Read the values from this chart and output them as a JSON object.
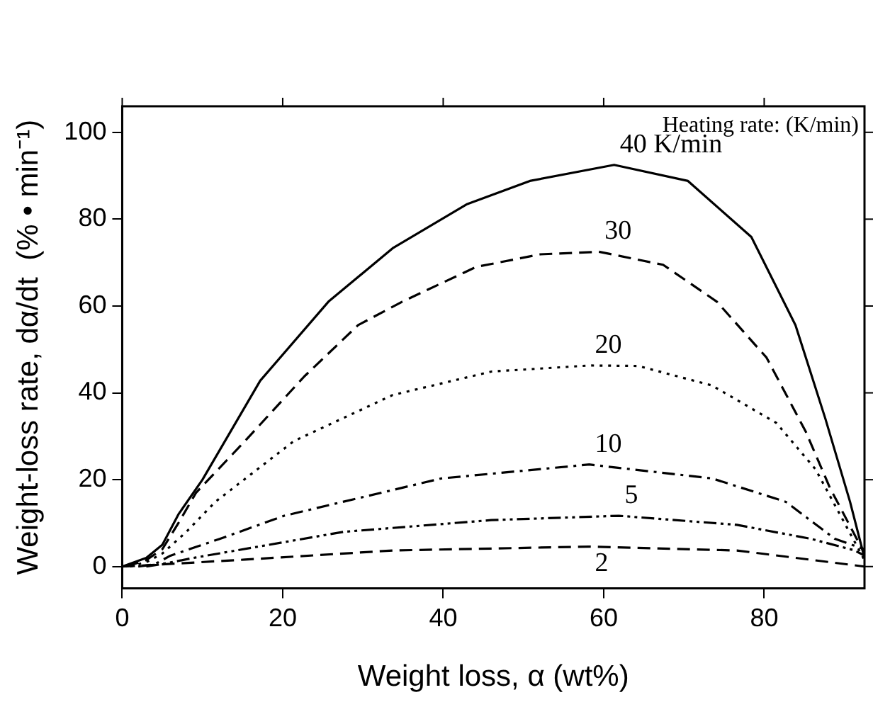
{
  "chart_data": {
    "type": "line",
    "xlabel": "Weight loss, α (wt%)",
    "ylabel": "Weight-loss rate, dα/dt  (% • min⁻¹)",
    "legend_title": "Heating rate: (K/min)",
    "xlim": [
      0,
      92.5
    ],
    "ylim": [
      -5,
      106
    ],
    "xticks": [
      0,
      20,
      40,
      60,
      80
    ],
    "yticks": [
      0,
      20,
      40,
      60,
      80,
      100
    ],
    "grid": false,
    "legend": "top right",
    "marker": "none",
    "series": [
      {
        "name": "40 K/min",
        "color": "#000000",
        "line_style": "solid",
        "x": [
          0,
          3,
          5,
          7,
          10,
          17.2,
          25.7,
          33.7,
          42.9,
          50.8,
          61.3,
          70.5,
          78.4,
          83.9,
          87.6,
          90.7,
          92.5
        ],
        "values": [
          0,
          2,
          5,
          12,
          20,
          42.8,
          61,
          73.3,
          83.4,
          88.8,
          92.5,
          88.8,
          75.9,
          55.6,
          34.2,
          14.9,
          2
        ]
      },
      {
        "name": "30",
        "color": "#000000",
        "line_style": "dashed",
        "x": [
          0.5,
          3,
          5,
          7,
          9.2,
          15.3,
          22.7,
          29.4,
          34.9,
          44.1,
          52.1,
          59.4,
          67.4,
          74.1,
          80.3,
          85.2,
          88.2,
          92.5
        ],
        "values": [
          0,
          1.5,
          4,
          10,
          17,
          28.9,
          43.8,
          55.6,
          61,
          69,
          71.9,
          72.5,
          69.5,
          61,
          48.1,
          31,
          18.1,
          3
        ]
      },
      {
        "name": "20",
        "color": "#000000",
        "line_style": "dotted",
        "x": [
          1,
          3,
          5,
          8,
          11.6,
          21.4,
          33.7,
          46,
          58.2,
          64.3,
          73.5,
          81.5,
          86.4,
          92.5
        ],
        "values": [
          0,
          1,
          3,
          8,
          14.9,
          28.9,
          39.5,
          44.9,
          46.3,
          46.2,
          41.7,
          33.1,
          22.4,
          1.5
        ]
      },
      {
        "name": "10",
        "color": "#000000",
        "line_style": "dashdot",
        "x": [
          2,
          4,
          6,
          12.2,
          20.2,
          39.8,
          58.2,
          73.5,
          82.7,
          88.8,
          92.5
        ],
        "values": [
          0,
          0.5,
          2.5,
          6.4,
          11.7,
          20.3,
          23.5,
          20.3,
          14.9,
          6.4,
          4
        ]
      },
      {
        "name": "5",
        "color": "#000000",
        "line_style": "dashdotdot",
        "x": [
          3,
          5,
          9.2,
          27.6,
          46,
          61.9,
          76.6,
          85.8,
          91.3,
          92.5
        ],
        "values": [
          0,
          0.6,
          2.1,
          8,
          10.7,
          11.7,
          9.6,
          6.4,
          3.7,
          2.5
        ]
      },
      {
        "name": "2",
        "color": "#000000",
        "line_style": "dashed",
        "x": [
          0,
          5,
          15.3,
          33.7,
          58.2,
          76.6,
          92.5
        ],
        "values": [
          0,
          0.5,
          1.6,
          3.7,
          4.6,
          3.7,
          0
        ]
      }
    ]
  }
}
